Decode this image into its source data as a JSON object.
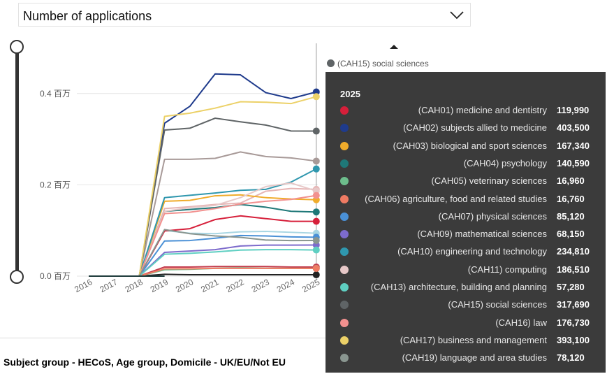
{
  "header": {
    "dropdown_label": "Number of applications"
  },
  "footer": {
    "subject_group": "Subject group - HECoS, Age group, Domicile - UK/EU/Not EU"
  },
  "chart_data": {
    "type": "line",
    "title": "Number of applications",
    "xlabel": "",
    "ylabel": "",
    "x": [
      "2016",
      "2017",
      "2018",
      "2019",
      "2020",
      "2021",
      "2022",
      "2023",
      "2024",
      "2025"
    ],
    "y_ticks": [
      {
        "value": 0.0,
        "label": "0.0 百万"
      },
      {
        "value": 0.2,
        "label": "0.2 百万"
      },
      {
        "value": 0.4,
        "label": "0.4 百万"
      }
    ],
    "ylim": [
      0,
      0.5
    ],
    "series": [
      {
        "name": "(CAH01) medicine and dentistry",
        "color": "#d61f3a",
        "values": [
          0,
          0,
          0,
          0.099,
          0.104,
          0.124,
          0.132,
          0.126,
          0.12,
          0.11999
        ]
      },
      {
        "name": "(CAH02) subjects allied to medicine",
        "color": "#1f3b8c",
        "values": [
          0,
          0,
          0,
          0.335,
          0.372,
          0.443,
          0.441,
          0.402,
          0.389,
          0.4035
        ]
      },
      {
        "name": "(CAH03) biological and sport sciences",
        "color": "#f0ac2b",
        "values": [
          0,
          0,
          0,
          0.164,
          0.166,
          0.176,
          0.178,
          0.172,
          0.169,
          0.16734
        ]
      },
      {
        "name": "(CAH04) psychology",
        "color": "#1f7878",
        "values": [
          0,
          0,
          0,
          0.142,
          0.146,
          0.15,
          0.157,
          0.151,
          0.142,
          0.14059
        ]
      },
      {
        "name": "(CAH05) veterinary sciences",
        "color": "#6dbd8c",
        "values": [
          0,
          0,
          0,
          0.014,
          0.015,
          0.017,
          0.018,
          0.017,
          0.017,
          0.01696
        ]
      },
      {
        "name": "(CAH06) agriculture, food and related studies",
        "color": "#ef7b63",
        "values": [
          0,
          0,
          0,
          0.016,
          0.016,
          0.017,
          0.017,
          0.017,
          0.017,
          0.01676
        ]
      },
      {
        "name": "(CAH07) physical sciences",
        "color": "#4a90d6",
        "values": [
          0,
          0,
          0,
          0.077,
          0.078,
          0.083,
          0.089,
          0.088,
          0.086,
          0.08512
        ]
      },
      {
        "name": "(CAH09) mathematical sciences",
        "color": "#7d6bcc",
        "values": [
          0,
          0,
          0,
          0.052,
          0.055,
          0.058,
          0.066,
          0.068,
          0.068,
          0.06815
        ]
      },
      {
        "name": "(CAH10) engineering and technology",
        "color": "#2f97ae",
        "values": [
          0,
          0,
          0,
          0.172,
          0.177,
          0.182,
          0.188,
          0.19,
          0.206,
          0.23481
        ]
      },
      {
        "name": "(CAH11) computing",
        "color": "#e7c8c8",
        "values": [
          0,
          0,
          0,
          0.142,
          0.15,
          0.155,
          0.172,
          0.196,
          0.204,
          0.18651
        ]
      },
      {
        "name": "(CAH13) architecture, building and planning",
        "color": "#5fcfc2",
        "values": [
          0,
          0,
          0,
          0.048,
          0.05,
          0.053,
          0.057,
          0.058,
          0.058,
          0.05728
        ]
      },
      {
        "name": "(CAH15) social sciences",
        "color": "#5f6466",
        "values": [
          0,
          0,
          0,
          0.32,
          0.324,
          0.346,
          0.338,
          0.331,
          0.318,
          0.31769
        ]
      },
      {
        "name": "(CAH16) law",
        "color": "#f2918f",
        "values": [
          0,
          0,
          0,
          0.137,
          0.14,
          0.148,
          0.158,
          0.164,
          0.168,
          0.17673
        ]
      },
      {
        "name": "(CAH17) business and management",
        "color": "#ecd168",
        "values": [
          0,
          0,
          0,
          0.35,
          0.357,
          0.368,
          0.382,
          0.381,
          0.378,
          0.3931
        ]
      },
      {
        "name": "(CAH19) language and area studies",
        "color": "#8a9690",
        "values": [
          0,
          0,
          0,
          0.102,
          0.093,
          0.088,
          0.085,
          0.079,
          0.078,
          0.07812
        ]
      }
    ],
    "background_series": [
      {
        "name": "light-brown",
        "color": "#a89a98",
        "values": [
          0,
          0,
          0,
          0.256,
          0.256,
          0.258,
          0.272,
          0.262,
          0.259,
          0.252
        ]
      },
      {
        "name": "light-blue",
        "color": "#a9d6e3",
        "values": [
          0,
          0,
          0,
          0.1,
          0.094,
          0.093,
          0.097,
          0.098,
          0.096,
          0.094
        ]
      },
      {
        "name": "pale-pink",
        "color": "#e6b5b5",
        "values": [
          0,
          0,
          0,
          0.148,
          0.152,
          0.157,
          0.16,
          0.186,
          0.192,
          0.19
        ]
      },
      {
        "name": "dark-small",
        "color": "#222222",
        "values": [
          0,
          0,
          0,
          0.004,
          0.003,
          0.003,
          0.003,
          0.003,
          0.003,
          0.003
        ]
      },
      {
        "name": "red-small",
        "color": "#c33b4d",
        "values": [
          0,
          0,
          0,
          0.02,
          0.02,
          0.021,
          0.021,
          0.021,
          0.02,
          0.02
        ]
      }
    ],
    "hover": {
      "year": "2025",
      "top_label": "(CAH15) social sciences",
      "top_label_color": "#5f6466",
      "rows": [
        {
          "name": "(CAH01) medicine and dentistry",
          "value": "119,990",
          "color": "#d61f3a"
        },
        {
          "name": "(CAH02) subjects allied to medicine",
          "value": "403,500",
          "color": "#1f3b8c"
        },
        {
          "name": "(CAH03) biological and sport sciences",
          "value": "167,340",
          "color": "#f0ac2b"
        },
        {
          "name": "(CAH04) psychology",
          "value": "140,590",
          "color": "#1f7878"
        },
        {
          "name": "(CAH05) veterinary sciences",
          "value": "16,960",
          "color": "#6dbd8c"
        },
        {
          "name": "(CAH06) agriculture, food and related studies",
          "value": "16,760",
          "color": "#ef7b63"
        },
        {
          "name": "(CAH07) physical sciences",
          "value": "85,120",
          "color": "#4a90d6"
        },
        {
          "name": "(CAH09) mathematical sciences",
          "value": "68,150",
          "color": "#7d6bcc"
        },
        {
          "name": "(CAH10) engineering and technology",
          "value": "234,810",
          "color": "#2f97ae"
        },
        {
          "name": "(CAH11) computing",
          "value": "186,510",
          "color": "#e7c8c8"
        },
        {
          "name": "(CAH13) architecture, building and planning",
          "value": "57,280",
          "color": "#5fcfc2"
        },
        {
          "name": "(CAH15) social sciences",
          "value": "317,690",
          "color": "#5f6466"
        },
        {
          "name": "(CAH16) law",
          "value": "176,730",
          "color": "#f2918f"
        },
        {
          "name": "(CAH17) business and management",
          "value": "393,100",
          "color": "#ecd168"
        },
        {
          "name": "(CAH19) language and area studies",
          "value": "78,120",
          "color": "#8a9690"
        }
      ]
    }
  }
}
